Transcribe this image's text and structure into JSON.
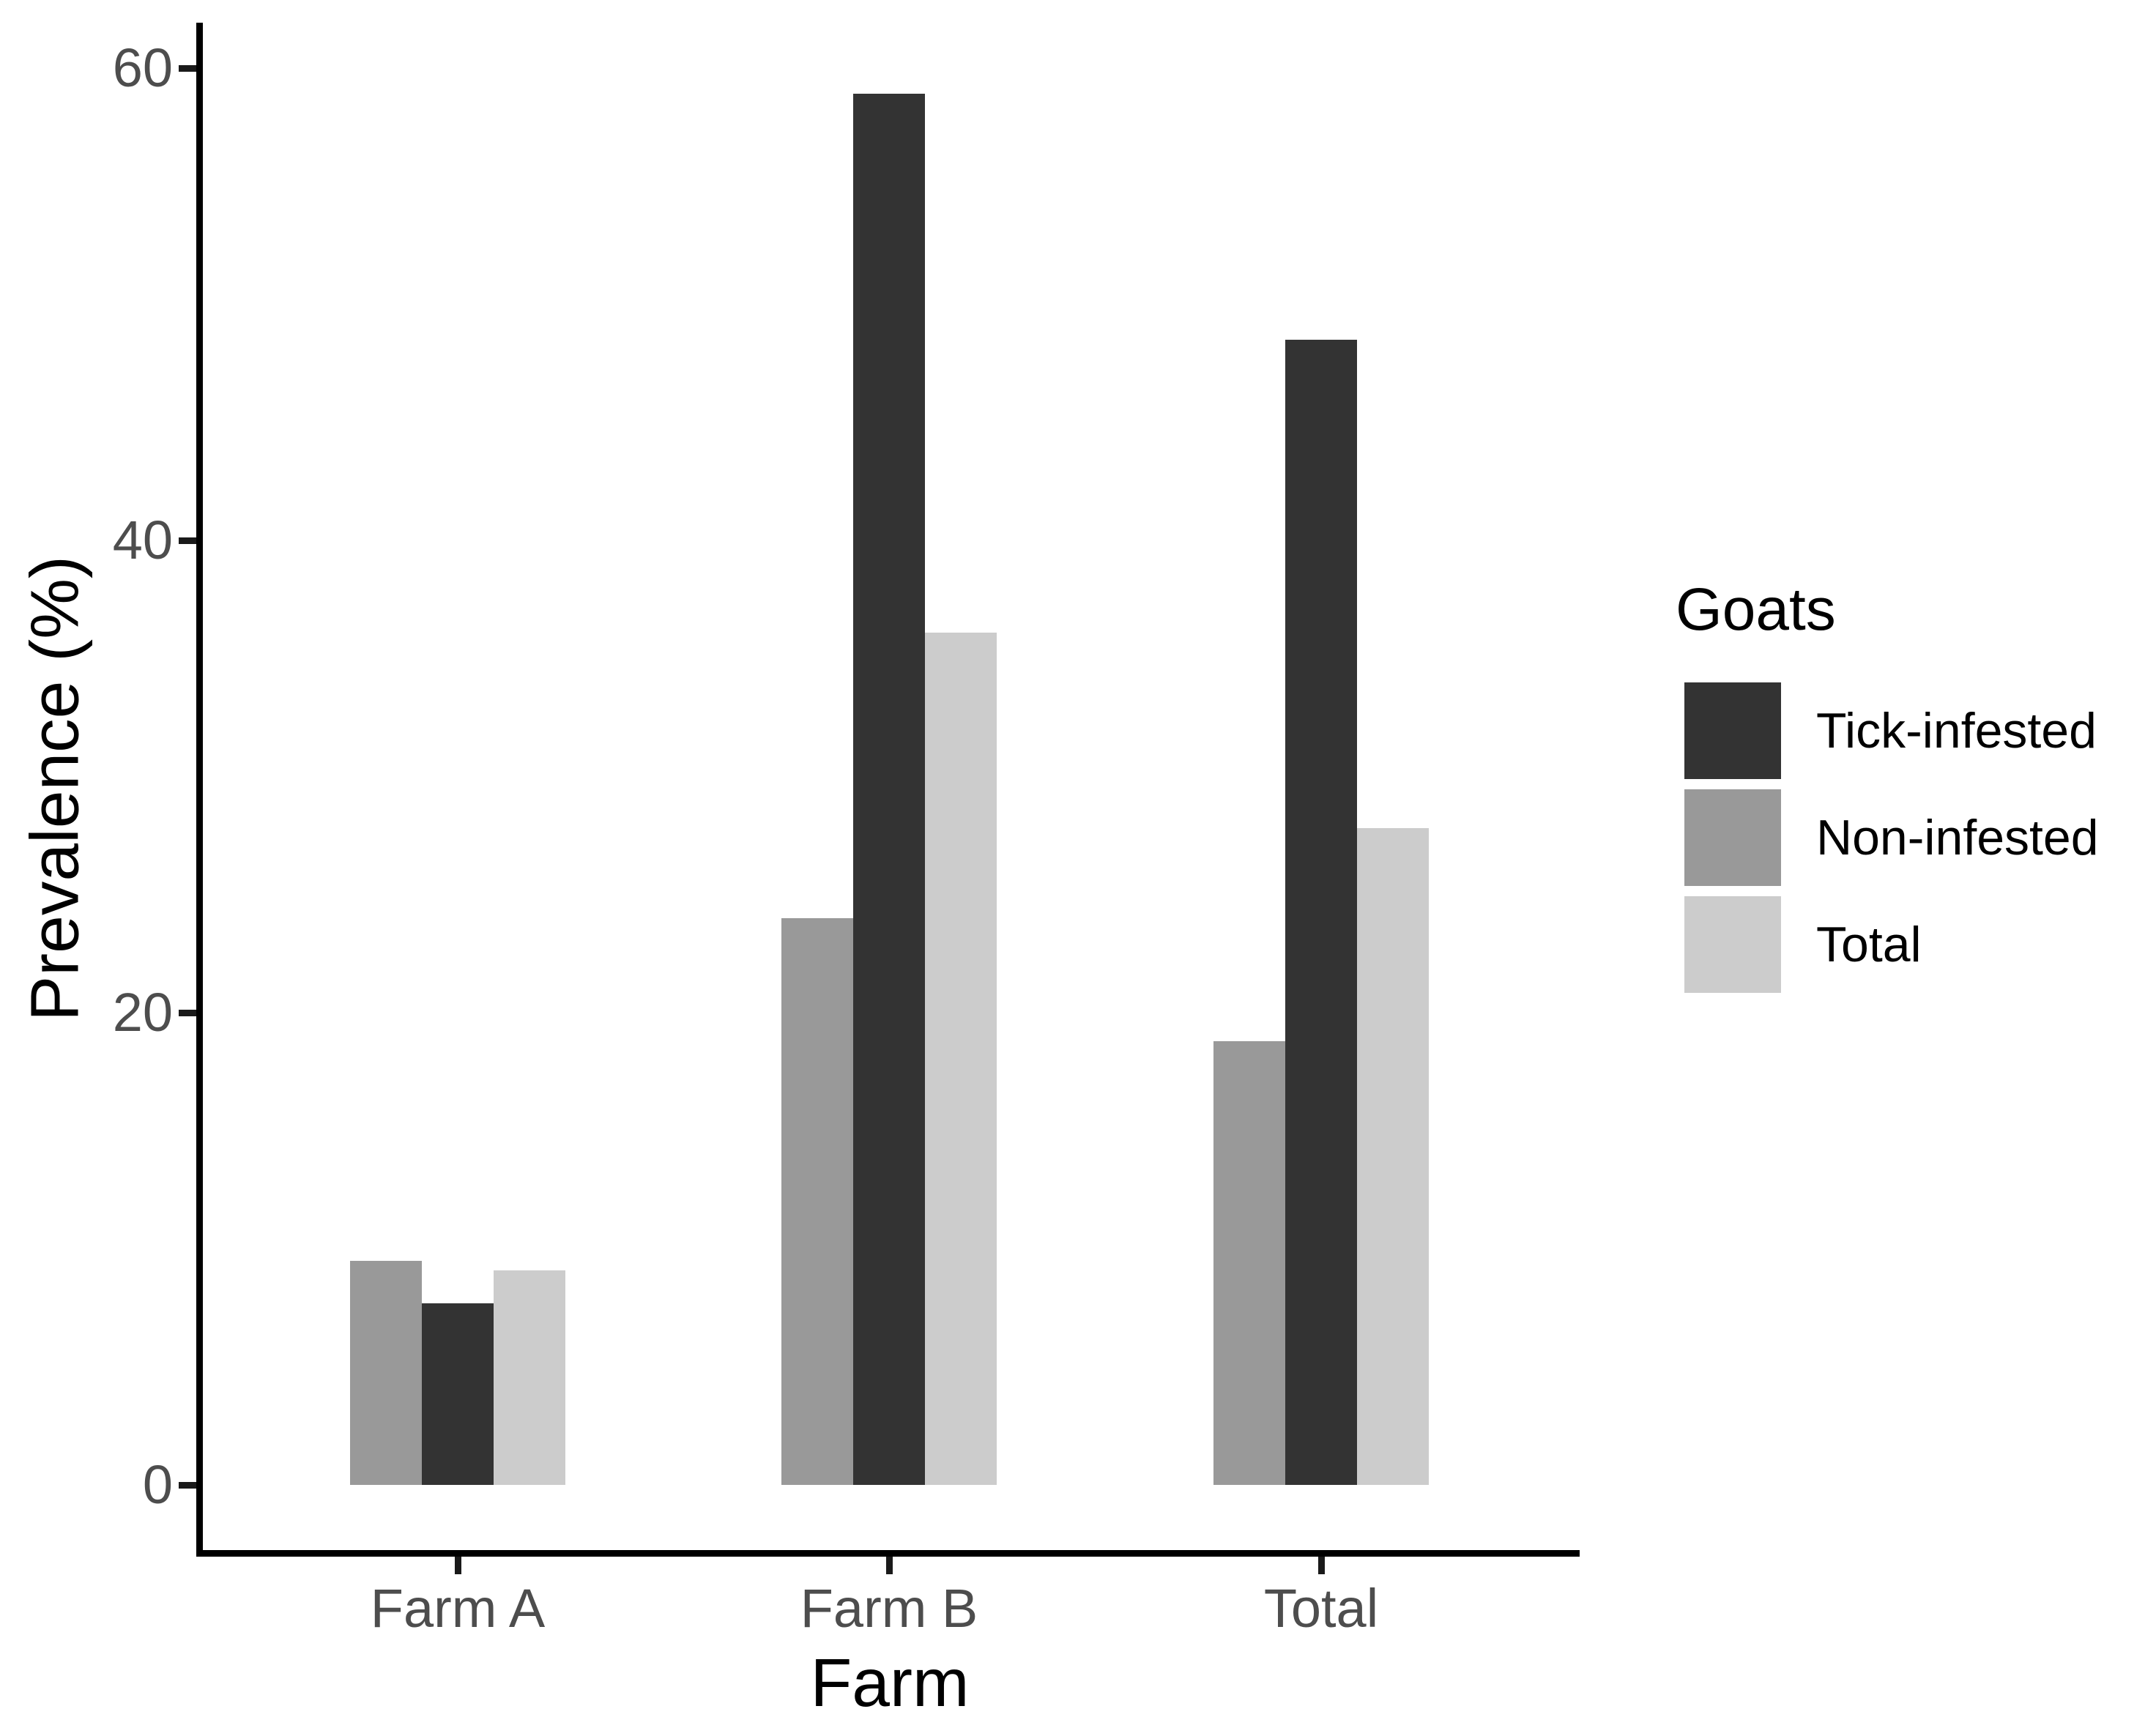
{
  "figure": {
    "background": "#ffffff"
  },
  "chart_data": {
    "type": "bar",
    "categories": [
      "Farm A",
      "Farm B",
      "Total"
    ],
    "series": [
      {
        "name": "Tick-infested",
        "color": "#333333",
        "values": [
          7.7,
          58.9,
          48.5
        ]
      },
      {
        "name": "Non-infested",
        "color": "#999999",
        "values": [
          9.5,
          24.0,
          18.8
        ]
      },
      {
        "name": "Total",
        "color": "#cccccc",
        "values": [
          9.1,
          36.1,
          27.8
        ]
      }
    ],
    "bar_order": [
      "Non-infested",
      "Tick-infested",
      "Total"
    ],
    "title": "",
    "xlabel": "Farm",
    "ylabel": "Prevalence (%)",
    "yticks": [
      0,
      20,
      40,
      60
    ],
    "ylim": [
      0,
      62
    ],
    "grid": false,
    "legend": {
      "title": "Goats",
      "position": "right",
      "entries": [
        "Tick-infested",
        "Non-infested",
        "Total"
      ]
    }
  },
  "colors": {
    "axis_line": "#000000",
    "tick_label": "#4d4d4d",
    "title_text": "#000000"
  }
}
